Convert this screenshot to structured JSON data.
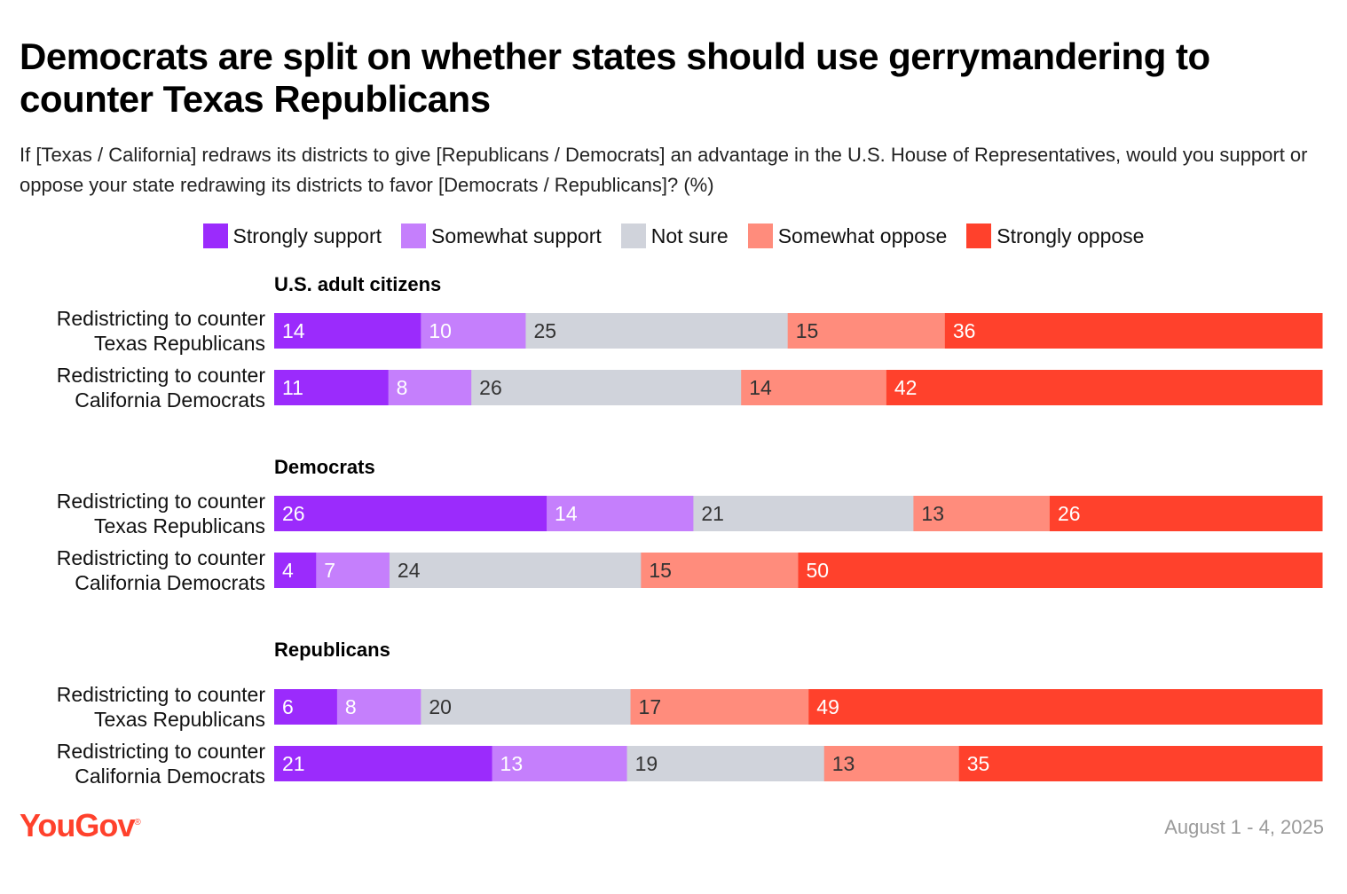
{
  "title": "Democrats are split on whether states should use gerrymandering to counter Texas Republicans",
  "subtitle": "If [Texas / California] redraws its districts to give [Republicans / Democrats] an advantage in the U.S. House of Representatives, would you support or oppose your state redrawing its districts to favor [Democrats / Republicans]? (%)",
  "legend": [
    {
      "label": "Strongly support",
      "color": "#9b2bfc"
    },
    {
      "label": "Somewhat support",
      "color": "#c57ffc"
    },
    {
      "label": "Not sure",
      "color": "#d0d3db"
    },
    {
      "label": "Somewhat oppose",
      "color": "#ff8c7c"
    },
    {
      "label": "Strongly oppose",
      "color": "#ff412c"
    }
  ],
  "chart_data": {
    "type": "bar",
    "orientation": "horizontal-stacked",
    "unit": "%",
    "series_names": [
      "Strongly support",
      "Somewhat support",
      "Not sure",
      "Somewhat oppose",
      "Strongly oppose"
    ],
    "groups": [
      {
        "name": "U.S. adult citizens",
        "rows": [
          {
            "label": [
              "Redistricting to counter",
              "Texas Republicans"
            ],
            "values": [
              14,
              10,
              25,
              15,
              36
            ]
          },
          {
            "label": [
              "Redistricting to counter",
              "California Democrats"
            ],
            "values": [
              11,
              8,
              26,
              14,
              42
            ]
          }
        ]
      },
      {
        "name": "Democrats",
        "rows": [
          {
            "label": [
              "Redistricting to counter",
              "Texas Republicans"
            ],
            "values": [
              26,
              14,
              21,
              13,
              26
            ]
          },
          {
            "label": [
              "Redistricting to counter",
              "California Democrats"
            ],
            "values": [
              4,
              7,
              24,
              15,
              50
            ]
          }
        ]
      },
      {
        "name": "Republicans",
        "rows": [
          {
            "label": [
              "Redistricting to counter",
              "Texas Republicans"
            ],
            "values": [
              6,
              8,
              20,
              17,
              49
            ]
          },
          {
            "label": [
              "Redistricting to counter",
              "California Democrats"
            ],
            "values": [
              21,
              13,
              19,
              13,
              35
            ]
          }
        ]
      }
    ]
  },
  "footer": {
    "logo": "YouGov",
    "date": "August 1 - 4, 2025"
  }
}
